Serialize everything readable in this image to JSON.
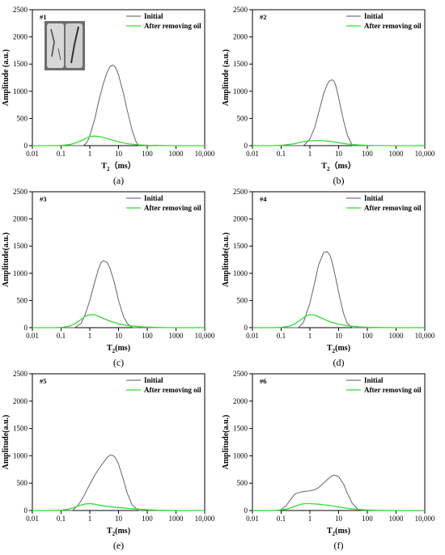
{
  "colors": {
    "initial": "#555555",
    "after": "#33dd33",
    "axis": "#000000"
  },
  "photo_icon": "core-sample-photo",
  "chart_data": [
    {
      "type": "line",
      "id": "#1",
      "panel_label": "(a)",
      "xlabel": "T",
      "xlabel_sub": "2",
      "xlabel_unit": "（ms）",
      "ylabel": "Amplitude (a.u.)",
      "xscale": "log",
      "xlim": [
        0.01,
        10000
      ],
      "ylim": [
        0,
        2500
      ],
      "xticks": [
        "0.01",
        "0.1",
        "1",
        "10",
        "100",
        "1000",
        "10,000"
      ],
      "yticks": [
        "0",
        "500",
        "1000",
        "1500",
        "2000",
        "2500"
      ],
      "legend": [
        "Initial",
        "After removing oil"
      ],
      "series": [
        {
          "name": "Initial",
          "x": [
            0.6,
            0.8,
            1,
            1.5,
            2,
            3,
            4,
            5,
            6,
            7,
            8,
            10,
            15,
            20,
            30,
            40,
            50
          ],
          "y": [
            0,
            60,
            180,
            500,
            800,
            1150,
            1350,
            1450,
            1480,
            1470,
            1430,
            1300,
            950,
            650,
            280,
            80,
            0
          ]
        },
        {
          "name": "After removing oil",
          "x": [
            0.05,
            0.1,
            0.2,
            0.3,
            0.5,
            0.7,
            1,
            1.5,
            2,
            3,
            5,
            10,
            20,
            50,
            100,
            200,
            500,
            1000
          ],
          "y": [
            0,
            5,
            20,
            45,
            90,
            130,
            165,
            175,
            170,
            150,
            115,
            70,
            35,
            15,
            8,
            4,
            2,
            0
          ]
        }
      ]
    },
    {
      "type": "line",
      "id": "#2",
      "panel_label": "(b)",
      "xlabel": "T",
      "xlabel_sub": "2",
      "xlabel_unit": "（ms）",
      "ylabel": "Amplitude (a.u.)",
      "xscale": "log",
      "xlim": [
        0.01,
        10000
      ],
      "ylim": [
        0,
        2500
      ],
      "xticks": [
        "0.01",
        "0.1",
        "1",
        "10",
        "100",
        "1000",
        "10,000"
      ],
      "yticks": [
        "0",
        "500",
        "1000",
        "1500",
        "2000",
        "2500"
      ],
      "legend": [
        "Initial",
        "After removing oil"
      ],
      "series": [
        {
          "name": "Initial",
          "x": [
            0.6,
            1,
            1.5,
            2,
            3,
            4,
            5,
            6,
            7,
            8,
            10,
            15,
            20,
            30
          ],
          "y": [
            0,
            120,
            350,
            600,
            950,
            1130,
            1200,
            1210,
            1180,
            1100,
            880,
            450,
            200,
            0
          ]
        },
        {
          "name": "After removing oil",
          "x": [
            0.05,
            0.1,
            0.3,
            0.5,
            1,
            2,
            3,
            5,
            10,
            20,
            50,
            100,
            200,
            500
          ],
          "y": [
            0,
            5,
            35,
            65,
            90,
            95,
            90,
            80,
            55,
            30,
            12,
            5,
            2,
            0
          ]
        }
      ]
    },
    {
      "type": "line",
      "id": "#3",
      "panel_label": "(c)",
      "xlabel": "T",
      "xlabel_sub": "2",
      "xlabel_unit": "(ms)",
      "ylabel": "Amplitude(a.u.)",
      "xscale": "log",
      "xlim": [
        0.01,
        10000
      ],
      "ylim": [
        0,
        2500
      ],
      "xticks": [
        "0.01",
        "0.1",
        "1",
        "10",
        "100",
        "1000",
        "10,000"
      ],
      "yticks": [
        "0",
        "500",
        "1000",
        "1500",
        "2000",
        "2500"
      ],
      "legend": [
        "Initial",
        "After removing oil"
      ],
      "series": [
        {
          "name": "Initial",
          "x": [
            0.3,
            0.5,
            0.7,
            1,
            1.5,
            2,
            2.5,
            3,
            4,
            5,
            7,
            10,
            15,
            20,
            30
          ],
          "y": [
            0,
            80,
            250,
            500,
            850,
            1080,
            1200,
            1230,
            1200,
            1100,
            850,
            500,
            200,
            80,
            0
          ]
        },
        {
          "name": "After removing oil",
          "x": [
            0.05,
            0.1,
            0.2,
            0.3,
            0.5,
            0.7,
            1,
            1.5,
            2,
            3,
            5,
            10,
            20,
            50,
            100,
            200,
            500,
            1000
          ],
          "y": [
            0,
            5,
            30,
            70,
            150,
            210,
            240,
            235,
            210,
            170,
            120,
            70,
            40,
            20,
            10,
            5,
            2,
            0
          ]
        }
      ]
    },
    {
      "type": "line",
      "id": "#4",
      "panel_label": "(d)",
      "xlabel": "T",
      "xlabel_sub": "2",
      "xlabel_unit": "(ms)",
      "ylabel": "Amplitude(a.u.)",
      "xscale": "log",
      "xlim": [
        0.01,
        10000
      ],
      "ylim": [
        0,
        2500
      ],
      "xticks": [
        "0.01",
        "0.1",
        "1",
        "10",
        "100",
        "1000",
        "10,000"
      ],
      "yticks": [
        "0",
        "500",
        "1000",
        "1500",
        "2000",
        "2500"
      ],
      "legend": [
        "Initial",
        "After removing oil"
      ],
      "series": [
        {
          "name": "Initial",
          "x": [
            0.4,
            0.6,
            1,
            1.5,
            2,
            3,
            4,
            5,
            6,
            8,
            10,
            15,
            20,
            30
          ],
          "y": [
            0,
            100,
            450,
            850,
            1150,
            1380,
            1400,
            1330,
            1200,
            900,
            650,
            250,
            80,
            0
          ]
        },
        {
          "name": "After removing oil",
          "x": [
            0.05,
            0.1,
            0.2,
            0.3,
            0.5,
            0.7,
            1,
            1.5,
            2,
            3,
            5,
            10,
            20,
            50,
            100,
            200,
            500,
            1000
          ],
          "y": [
            0,
            5,
            30,
            70,
            150,
            210,
            240,
            230,
            200,
            160,
            110,
            65,
            35,
            15,
            8,
            4,
            2,
            0
          ]
        }
      ]
    },
    {
      "type": "line",
      "id": "#5",
      "panel_label": "(e)",
      "xlabel": "T",
      "xlabel_sub": "2",
      "xlabel_unit": "(ms)",
      "ylabel": "Amplitude(a.u.)",
      "xscale": "log",
      "xlim": [
        0.01,
        10000
      ],
      "ylim": [
        0,
        2500
      ],
      "xticks": [
        "0.01",
        "0.1",
        "1",
        "10",
        "100",
        "1000",
        "10,000"
      ],
      "yticks": [
        "0",
        "500",
        "1000",
        "1500",
        "2000",
        "2500"
      ],
      "legend": [
        "Initial",
        "After removing oil"
      ],
      "series": [
        {
          "name": "Initial",
          "x": [
            0.25,
            0.4,
            0.6,
            1,
            1.5,
            2,
            3,
            4,
            5,
            6,
            7,
            8,
            10,
            15,
            20,
            30,
            50
          ],
          "y": [
            0,
            100,
            250,
            480,
            650,
            750,
            880,
            970,
            1010,
            1010,
            990,
            950,
            850,
            550,
            320,
            100,
            0
          ]
        },
        {
          "name": "After removing oil",
          "x": [
            0.05,
            0.1,
            0.2,
            0.3,
            0.5,
            0.7,
            1,
            1.5,
            2,
            3,
            5,
            10,
            20,
            50,
            100,
            200,
            500,
            1000
          ],
          "y": [
            0,
            5,
            30,
            60,
            100,
            120,
            125,
            115,
            100,
            85,
            70,
            55,
            40,
            25,
            15,
            8,
            3,
            0
          ]
        }
      ]
    },
    {
      "type": "line",
      "id": "#6",
      "panel_label": "(f)",
      "xlabel": "T",
      "xlabel_sub": "2",
      "xlabel_unit": "(ms)",
      "ylabel": "Amplitude(a.u.)",
      "xscale": "log",
      "xlim": [
        0.01,
        10000
      ],
      "ylim": [
        0,
        2500
      ],
      "xticks": [
        "0.01",
        "0.1",
        "1",
        "10",
        "100",
        "1000",
        "10,000"
      ],
      "yticks": [
        "0",
        "500",
        "1000",
        "1500",
        "2000",
        "2500"
      ],
      "legend": [
        "Initial",
        "After removing oil"
      ],
      "series": [
        {
          "name": "Initial",
          "x": [
            0.08,
            0.1,
            0.15,
            0.2,
            0.3,
            0.5,
            0.7,
            1,
            1.5,
            2,
            3,
            5,
            7,
            10,
            15,
            20,
            30,
            50,
            70
          ],
          "y": [
            0,
            20,
            90,
            180,
            300,
            340,
            350,
            360,
            380,
            420,
            500,
            610,
            650,
            620,
            480,
            320,
            130,
            10,
            0
          ]
        },
        {
          "name": "After removing oil",
          "x": [
            0.05,
            0.1,
            0.2,
            0.3,
            0.5,
            0.7,
            1,
            2,
            3,
            5,
            10,
            20,
            50,
            100,
            200,
            500,
            1000
          ],
          "y": [
            0,
            10,
            40,
            80,
            115,
            125,
            125,
            115,
            105,
            90,
            65,
            40,
            20,
            10,
            5,
            2,
            0
          ]
        }
      ]
    }
  ]
}
